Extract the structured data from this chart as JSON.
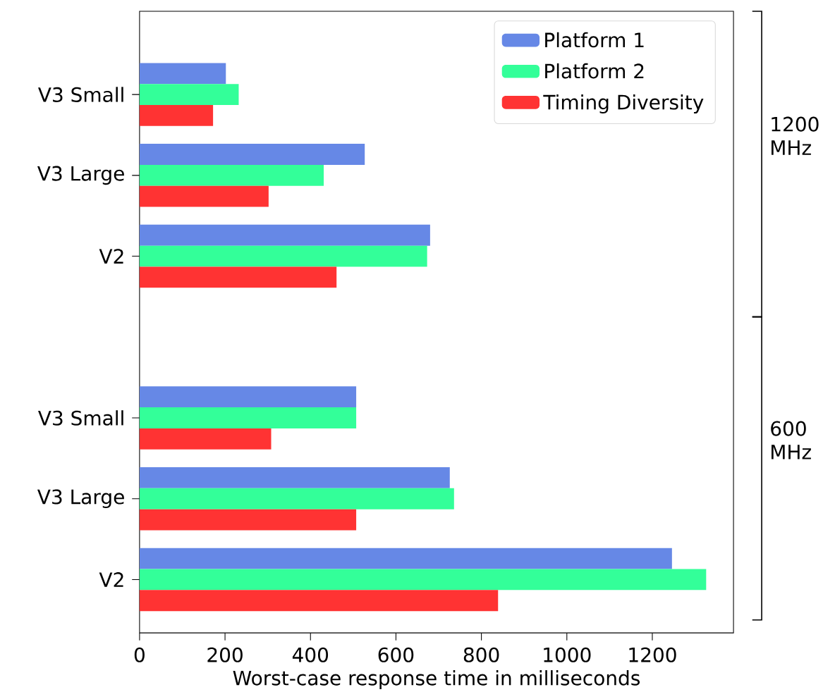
{
  "chart_data": {
    "type": "bar",
    "orientation": "horizontal",
    "xlabel": "Worst-case response time in milliseconds",
    "categories": [
      "V3 Small",
      "V3 Large",
      "V2",
      null,
      "V3 Small",
      "V3 Large",
      "V2"
    ],
    "series": [
      {
        "name": "Platform 1",
        "color": "#6688e6",
        "values": [
          202,
          527,
          680,
          null,
          507,
          726,
          1246
        ]
      },
      {
        "name": "Platform 2",
        "color": "#33ff99",
        "values": [
          232,
          431,
          673,
          null,
          507,
          736,
          1326
        ]
      },
      {
        "name": "Timing Diversity",
        "color": "#ff3333",
        "values": [
          172,
          302,
          461,
          null,
          308,
          507,
          839
        ]
      }
    ],
    "xlim": [
      0,
      1390
    ],
    "xticks": [
      0,
      200,
      400,
      600,
      800,
      1000,
      1200
    ],
    "annotations": [
      "1200 MHz",
      "600 MHz"
    ],
    "legend": "top right",
    "grid": false
  }
}
